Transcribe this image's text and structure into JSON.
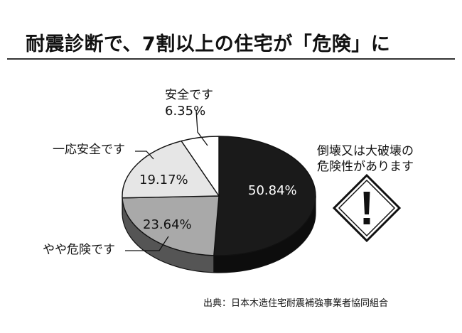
{
  "title": "耐震診断で、7割以上の住宅が「危険」に",
  "source": "出典：日本木造住宅耐震補強事業者協同組合",
  "chart_data": {
    "type": "pie",
    "title": "",
    "slices": [
      {
        "label": "倒壊又は大破壊の危険性があります",
        "value": 50.84,
        "value_label": "50.84%",
        "fill": "#1a1a1a",
        "side": "#0d0d0d"
      },
      {
        "label": "やや危険です",
        "value": 23.64,
        "value_label": "23.64%",
        "fill": "#a9a9a9",
        "side": "#555555"
      },
      {
        "label": "一応安全です",
        "value": 19.17,
        "value_label": "19.17%",
        "fill": "#e6e6e6",
        "side": "#8a8a8a"
      },
      {
        "label": "安全です",
        "value": 6.35,
        "value_label": "6.35%",
        "fill": "#ffffff",
        "side": "#bbbbbb"
      }
    ],
    "labels": {
      "danger_line1": "倒壊又は大破壊の",
      "danger_line2": "危険性があります",
      "somewhat": "やや危険です",
      "safe_enough": "一応安全です",
      "safe": "安全です"
    },
    "warning_icon": "exclamation-warning-icon"
  }
}
